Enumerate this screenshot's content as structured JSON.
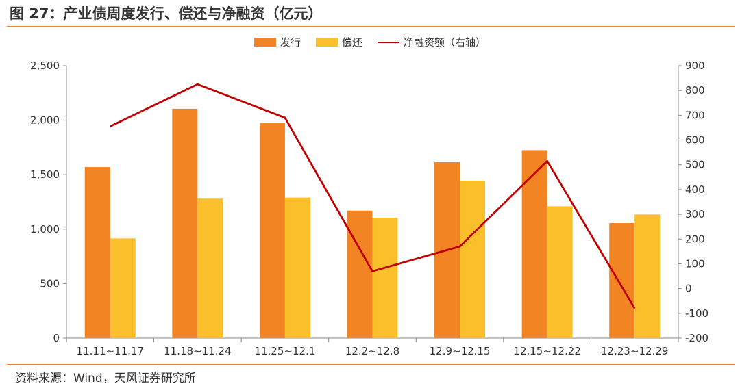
{
  "title": "图 27：产业债周度发行、偿还与净融资（亿元）",
  "source": "资料来源：Wind，天风证券研究所",
  "chart_data": {
    "type": "bar",
    "categories": [
      "11.11~11.17",
      "11.18~11.24",
      "11.25~12.1",
      "12.2~12.8",
      "12.9~12.15",
      "12.15~12.22",
      "12.23~12.29"
    ],
    "series": [
      {
        "name": "发行",
        "type": "bar",
        "axis": "left",
        "color": "#F28424",
        "values": [
          1570,
          2105,
          1975,
          1170,
          1615,
          1725,
          1055
        ]
      },
      {
        "name": "偿还",
        "type": "bar",
        "axis": "left",
        "color": "#FBBF2C",
        "values": [
          915,
          1280,
          1290,
          1105,
          1445,
          1210,
          1135
        ]
      },
      {
        "name": "净融资额（右轴）",
        "type": "line",
        "axis": "right",
        "color": "#C00000",
        "values": [
          655,
          825,
          690,
          70,
          170,
          515,
          -80
        ]
      }
    ],
    "y_left": {
      "min": 0,
      "max": 2500,
      "ticks": [
        "0",
        "500",
        "1,000",
        "1,500",
        "2,000",
        "2,500"
      ]
    },
    "y_right": {
      "min": -200,
      "max": 900,
      "ticks": [
        "-200",
        "-100",
        "0",
        "100",
        "200",
        "300",
        "400",
        "500",
        "600",
        "700",
        "800",
        "900"
      ]
    },
    "legend_position": "top",
    "grid": false
  }
}
